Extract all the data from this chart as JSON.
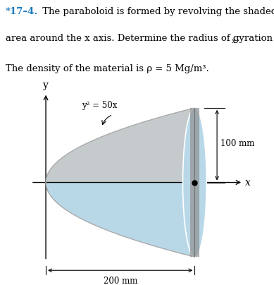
{
  "title_star": "*17–4.",
  "title_line1": "  The paraboloid is formed by revolving the shaded",
  "title_line2": "area around the x axis. Determine the radius of gyration k",
  "title_kx": "x",
  "title_dot": ".",
  "title_line3": "The density of the material is ρ = 5 Mg/m³.",
  "equation_label": "y² = 50x",
  "dim_horizontal": "200 mm",
  "dim_vertical": "100 mm",
  "axis_label_x": "x",
  "axis_label_y": "y",
  "color_gray": "#c8c8c8",
  "color_blue": "#b8d8e8",
  "color_blue_deep": "#8ab8cc",
  "color_ellipse_edge": "#7090a0",
  "color_rim": "#909090",
  "bg_color": "#ffffff"
}
